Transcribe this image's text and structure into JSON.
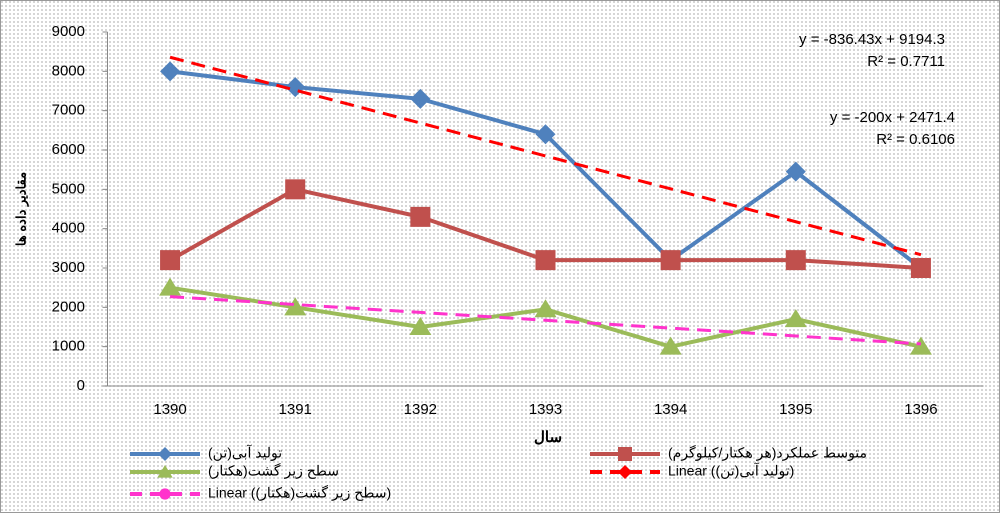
{
  "chart_data": {
    "type": "line",
    "x_label": "سال",
    "y_label": "مقادیر داده ها",
    "categories": [
      "1390",
      "1391",
      "1392",
      "1393",
      "1394",
      "1395",
      "1396"
    ],
    "ylim": [
      0,
      9000
    ],
    "yticks": [
      0,
      1000,
      2000,
      3000,
      4000,
      5000,
      6000,
      7000,
      8000,
      9000
    ],
    "series": [
      {
        "name": "تولید آبی(تن)",
        "color": "#4f81bd",
        "marker": "diamond",
        "dashed": false,
        "values": [
          8000,
          7600,
          7300,
          6400,
          3200,
          5450,
          3000
        ]
      },
      {
        "name": "متوسط عملکرد(هر هکتار/کیلوگرم)",
        "color": "#c0504d",
        "marker": "square",
        "dashed": false,
        "values": [
          3200,
          5000,
          4300,
          3200,
          3200,
          3200,
          3000
        ]
      },
      {
        "name": "سطح زیر گشت(هکتار)",
        "color": "#9bbb59",
        "marker": "triangle",
        "dashed": false,
        "values": [
          2500,
          2000,
          1500,
          1950,
          1000,
          1700,
          1000
        ]
      },
      {
        "name": "Linear (تولید آبی(تن))",
        "color": "#ff0000",
        "marker": "diamond",
        "dashed": true,
        "values": [
          8357.87,
          7521.44,
          6685.01,
          5848.58,
          5012.15,
          4175.72,
          3339.29
        ]
      },
      {
        "name": "Linear (سطح زیر گشت(هکتار))",
        "color": "#ff33cc",
        "marker": "circle",
        "dashed": true,
        "values": [
          2271.4,
          2071.4,
          1871.4,
          1671.4,
          1471.4,
          1271.4,
          1071.4
        ]
      }
    ],
    "annotations": [
      "y = -836.43x + 9194.3",
      "R² = 0.7711",
      "y = -200x + 2471.4",
      "R² = 0.6106"
    ]
  }
}
